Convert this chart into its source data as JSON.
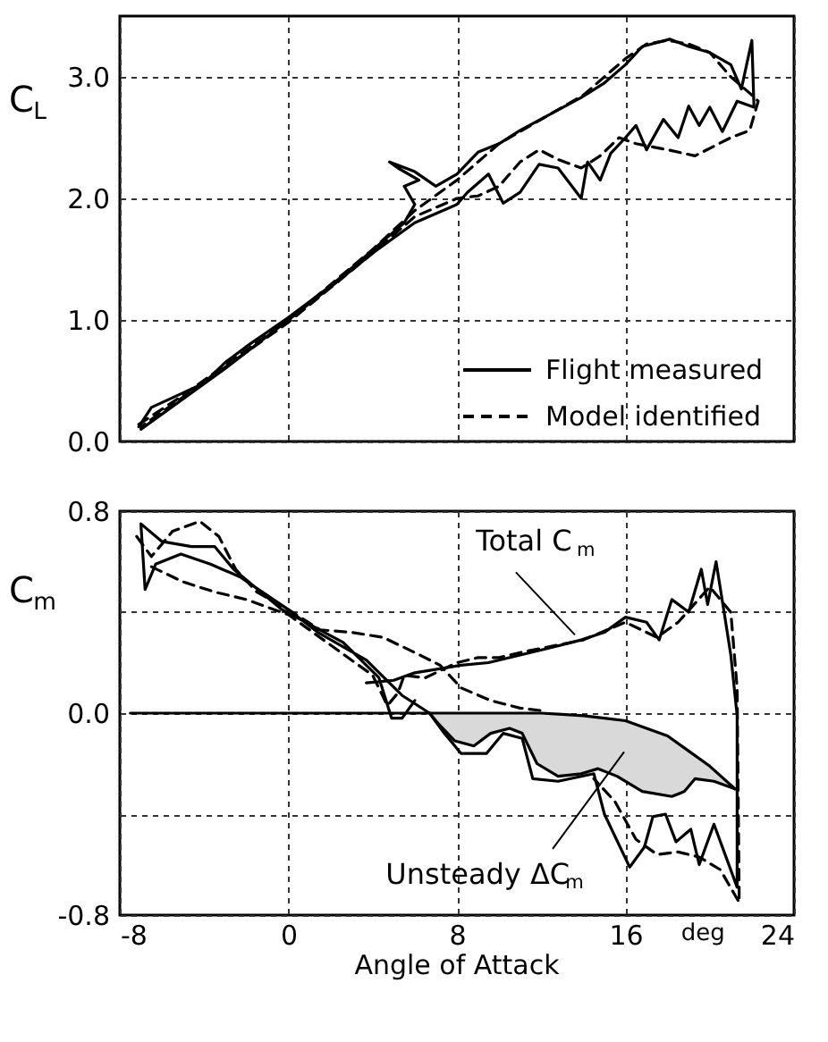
{
  "chart_data": [
    {
      "type": "line",
      "ylabel": "C$_{L}$",
      "xlim": [
        -8,
        24
      ],
      "xticks": [
        -8,
        0,
        8,
        16,
        24
      ],
      "ylim": [
        0,
        3.5
      ],
      "yticks": [
        {
          "value": 0,
          "label": "0.0"
        },
        {
          "value": 1,
          "label": "1.0"
        },
        {
          "value": 2,
          "label": "2.0"
        },
        {
          "value": 3,
          "label": "3.0"
        }
      ],
      "tick_labels": "y",
      "grid": true,
      "legend": "bottom right",
      "series": [
        {
          "name": "Flight measured",
          "color": "#000000",
          "line_style": "solid",
          "x": [
            -7.1,
            -6.5,
            -5,
            -4,
            -3,
            -2,
            0,
            2,
            3.5,
            4.5,
            5.5,
            6,
            5.5,
            6.2,
            5.2,
            4.8,
            6,
            7,
            8,
            9,
            10,
            11,
            12.5,
            13.9,
            15,
            16,
            16.8,
            18.1,
            19,
            20,
            21,
            21.5,
            22,
            22.1,
            21.3,
            20.6,
            20,
            19.5,
            19,
            18.5,
            17.8,
            17,
            16.5,
            16,
            15.3,
            14.8,
            14.2,
            13.9,
            12.8,
            11.9,
            11,
            10.2,
            9.5,
            8.5,
            8,
            6,
            4,
            2,
            0,
            -3,
            -7
          ],
          "values": [
            0.12,
            0.28,
            0.4,
            0.48,
            0.65,
            0.78,
            1.02,
            1.28,
            1.5,
            1.65,
            1.8,
            1.95,
            2.1,
            2.15,
            2.25,
            2.3,
            2.22,
            2.1,
            2.2,
            2.38,
            2.45,
            2.56,
            2.7,
            2.83,
            2.95,
            3.1,
            3.25,
            3.31,
            3.25,
            3.2,
            3.1,
            2.9,
            3.3,
            2.75,
            2.8,
            2.55,
            2.75,
            2.6,
            2.76,
            2.5,
            2.65,
            2.4,
            2.6,
            2.5,
            2.37,
            2.15,
            2.3,
            2.0,
            2.25,
            2.28,
            2.05,
            1.96,
            2.2,
            2.05,
            1.95,
            1.8,
            1.55,
            1.27,
            1.0,
            0.6,
            0.1
          ]
        },
        {
          "name": "Model identified",
          "color": "#000000",
          "line_style": "dashed",
          "x": [
            -7.1,
            -5,
            0,
            4,
            6,
            8,
            10,
            12,
            14,
            16,
            17,
            18,
            19,
            20,
            21,
            22,
            22.3,
            21.9,
            21,
            19.3,
            18,
            16.5,
            15.7,
            14.8,
            13.9,
            12.8,
            11.9,
            11,
            10,
            9,
            8,
            6,
            4,
            0,
            -7
          ],
          "values": [
            0.14,
            0.38,
            1.0,
            1.58,
            1.9,
            2.15,
            2.45,
            2.65,
            2.85,
            3.15,
            3.27,
            3.3,
            3.27,
            3.2,
            3.0,
            2.85,
            2.8,
            2.56,
            2.5,
            2.35,
            2.4,
            2.45,
            2.5,
            2.35,
            2.25,
            2.32,
            2.4,
            2.3,
            2.1,
            2.02,
            2.0,
            1.85,
            1.55,
            0.98,
            0.12
          ]
        }
      ]
    },
    {
      "type": "line",
      "xlabel": "Angle of Attack",
      "ylabel": "C$_{m}$",
      "xlim": [
        -8,
        24
      ],
      "xticks": [
        -8,
        0,
        8,
        16,
        24
      ],
      "ylim": [
        -0.8,
        0.8
      ],
      "yticks": [
        {
          "value": -0.8,
          "label": "-0.8"
        },
        {
          "value": -0.4,
          "label": null
        },
        {
          "value": 0,
          "label": "0.0"
        },
        {
          "value": 0.4,
          "label": null
        },
        {
          "value": 0.8,
          "label": "0.8"
        }
      ],
      "grid": true,
      "legend": false,
      "annotations": [
        {
          "text": "Total C$_{m}$",
          "x": 13.6,
          "y": 0.31
        },
        "Unsteady ΔC$_{m}$",
        "deg"
      ],
      "series": [
        {
          "color": "#000000",
          "line_style": "solid",
          "x": [
            3.7,
            5,
            6,
            8.2,
            9.5,
            11,
            12.5,
            13.9,
            15,
            16,
            17,
            17.6,
            18.2,
            19,
            19.6,
            19.9,
            20.3,
            20.7,
            21,
            21.3,
            21.3,
            20.2,
            19.5,
            19.1,
            18.4,
            17.9,
            17.3,
            16.9,
            16.2,
            15,
            14.5,
            12.8,
            11.6,
            11.1,
            10.2,
            9.4,
            8.2,
            7.4,
            6.7,
            5.4,
            3.7,
            1.4,
            0,
            -2.3,
            -3.7,
            -5.1,
            -6.3,
            -6.8,
            -7,
            -6,
            -4.6,
            -3.5,
            -2.6,
            -0.3,
            2.6,
            4.3,
            4.9,
            5.4,
            6
          ],
          "values": [
            0.12,
            0.13,
            0.16,
            0.19,
            0.2,
            0.23,
            0.26,
            0.29,
            0.32,
            0.38,
            0.36,
            0.29,
            0.45,
            0.4,
            0.57,
            0.43,
            0.6,
            0.39,
            0.23,
            -0.01,
            -0.69,
            -0.44,
            -0.6,
            -0.46,
            -0.51,
            -0.4,
            -0.41,
            -0.53,
            -0.61,
            -0.4,
            -0.24,
            -0.27,
            -0.26,
            -0.1,
            -0.08,
            -0.16,
            -0.16,
            -0.08,
            0.0,
            0.07,
            0.21,
            0.32,
            0.41,
            0.54,
            0.59,
            0.63,
            0.59,
            0.49,
            0.75,
            0.68,
            0.66,
            0.66,
            0.57,
            0.41,
            0.28,
            0.14,
            -0.02,
            -0.02,
            0.05
          ]
        },
        {
          "color": "#000000",
          "line_style": "dashed",
          "x": [
            -7.2,
            -6.5,
            -5.5,
            -4.2,
            -3.3,
            -2.5,
            -1.5,
            0,
            1.5,
            3,
            4.5,
            6,
            7.2,
            8.2,
            9.6,
            11,
            12
          ],
          "values": [
            0.7,
            0.62,
            0.72,
            0.76,
            0.7,
            0.57,
            0.48,
            0.41,
            0.33,
            0.32,
            0.3,
            0.24,
            0.19,
            0.1,
            0.05,
            0.02,
            0.01
          ]
        },
        {
          "color": "#000000",
          "line_style": "dashed",
          "x": [
            -6.5,
            -5,
            -3.5,
            -2,
            0,
            2,
            4,
            4.7,
            5.2,
            5.5,
            6.5,
            8,
            9,
            10,
            11,
            14,
            16,
            17.5,
            18.5,
            20,
            21,
            21.3,
            21.4,
            20.5,
            19.5,
            18.5,
            17.5,
            16.5,
            15.5,
            14.5
          ],
          "values": [
            0.58,
            0.52,
            0.48,
            0.45,
            0.39,
            0.27,
            0.15,
            0.03,
            0.08,
            0.15,
            0.14,
            0.2,
            0.22,
            0.22,
            0.24,
            0.29,
            0.36,
            0.3,
            0.36,
            0.5,
            0.4,
            0.1,
            -0.75,
            -0.62,
            -0.57,
            -0.55,
            -0.56,
            -0.5,
            -0.35,
            -0.26
          ]
        },
        {
          "color": "#000000",
          "line_style": "solid",
          "x": [
            -7.5,
            0,
            8,
            12,
            13,
            14,
            15,
            16,
            17,
            18,
            19,
            20,
            21.2
          ],
          "values": [
            0,
            0,
            0,
            0,
            -0.005,
            -0.01,
            -0.02,
            -0.03,
            -0.06,
            -0.09,
            -0.15,
            -0.21,
            -0.3
          ]
        },
        {
          "color": "#000000",
          "line_style": "solid",
          "x": [
            21.2,
            20.2,
            19.3,
            18.8,
            18.2,
            16.8,
            15.6,
            14.7,
            13.9,
            12.8,
            11.8,
            11.1,
            10.5,
            9.6,
            8.8,
            7.9,
            7.1,
            6.7
          ],
          "values": [
            -0.3,
            -0.27,
            -0.26,
            -0.31,
            -0.33,
            -0.31,
            -0.25,
            -0.22,
            -0.24,
            -0.25,
            -0.2,
            -0.08,
            -0.06,
            -0.08,
            -0.13,
            -0.11,
            -0.04,
            0
          ],
          "lower": [
            -0.3,
            -0.27,
            -0.26,
            -0.31,
            -0.33,
            -0.31,
            -0.25,
            -0.22,
            -0.24,
            -0.25,
            -0.2,
            -0.08,
            -0.06,
            -0.08,
            -0.13,
            -0.11,
            -0.04,
            0
          ],
          "upper": [
            -0.3,
            -0.22,
            -0.17,
            -0.14,
            -0.1,
            -0.05,
            -0.025,
            -0.015,
            -0.01,
            -0.005,
            0,
            0,
            0,
            0,
            0,
            0,
            0,
            0
          ]
        }
      ]
    }
  ]
}
